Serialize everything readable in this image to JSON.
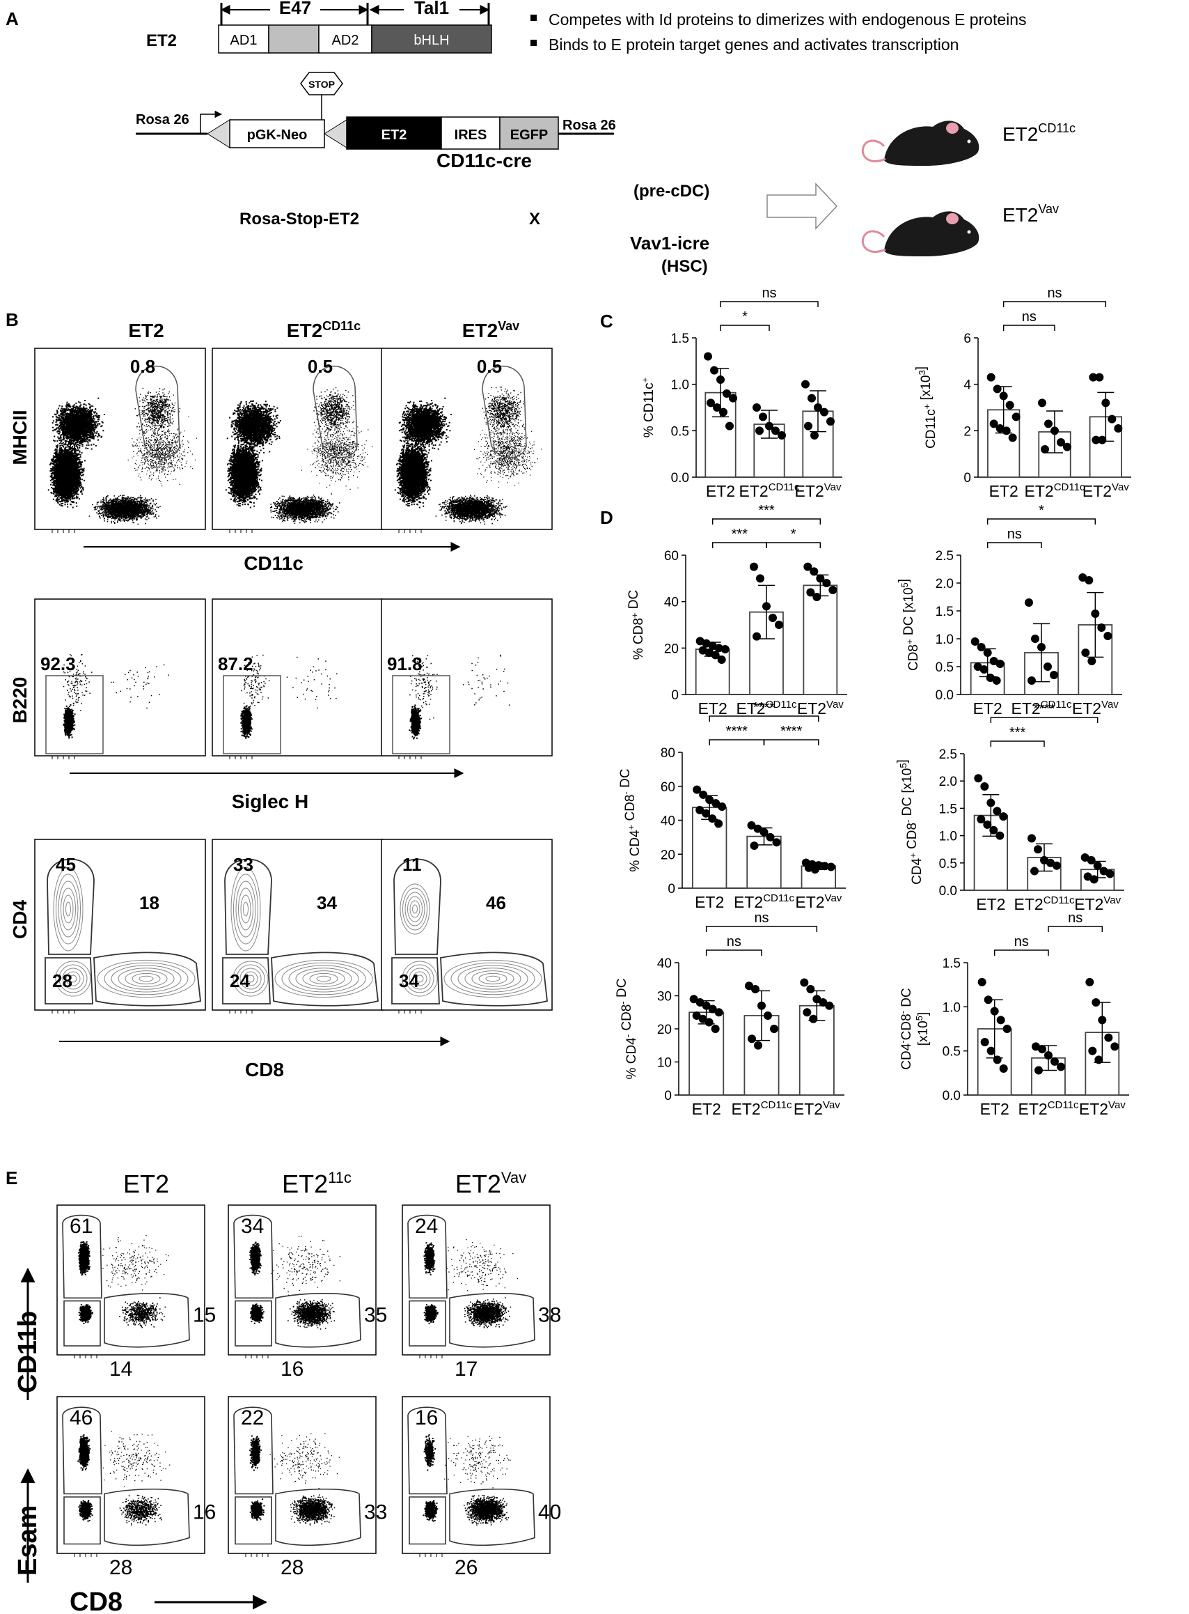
{
  "panelA": {
    "letter": "A",
    "construct_name": "ET2",
    "bracket_e47": "E47",
    "bracket_tal1": "Tal1",
    "domains": [
      "AD1",
      "AD2",
      "bHLH"
    ],
    "bullets": [
      "Competes with Id proteins to dimerizes with endogenous E proteins",
      "Binds to E protein target genes and activates transcription"
    ],
    "stop": "STOP",
    "rosa_left": "Rosa 26",
    "rosa_right": "Rosa 26",
    "pgk": "pGK-Neo",
    "et2_box": "ET2",
    "ires": "IRES",
    "egfp": "EGFP",
    "cd11c_cre": "CD11c-cre",
    "pre_cdc": "(pre-cDC)",
    "rosa_stop_et2": "Rosa-Stop-ET2",
    "cross": "X",
    "vav1_icre": "Vav1-icre",
    "hsc": "(HSC)",
    "mouse1_base": "ET2",
    "mouse1_sup": "CD11c",
    "mouse2_base": "ET2",
    "mouse2_sup": "Vav",
    "colors": {
      "bhlh": "#595959",
      "egfp": "#bfbfbf",
      "ad_gap": "#bfbfbf",
      "mouse": "#1a1a1a",
      "ear": "#e8a0b0",
      "tail": "#e08a9a"
    }
  },
  "panelB": {
    "letter": "B",
    "col_titles": [
      {
        "base": "ET2",
        "sup": ""
      },
      {
        "base": "ET2",
        "sup": "CD11c"
      },
      {
        "base": "ET2",
        "sup": "Vav"
      }
    ],
    "row1": {
      "ylabel": "MHCII",
      "xlabel": "CD11c",
      "gate_values": [
        "0.8",
        "0.5",
        "0.5"
      ]
    },
    "row2": {
      "ylabel": "B220",
      "xlabel": "Siglec H",
      "gate_values": [
        "92.3",
        "87.2",
        "91.8"
      ]
    },
    "row3": {
      "ylabel": "CD4",
      "xlabel": "CD8",
      "gates": [
        {
          "cd4": "45",
          "cd8": "18",
          "dn": "28"
        },
        {
          "cd4": "33",
          "cd8": "34",
          "dn": "24"
        },
        {
          "cd4": "11",
          "cd8": "46",
          "dn": "34"
        }
      ]
    }
  },
  "panelC": {
    "letter": "C"
  },
  "panelD": {
    "letter": "D"
  },
  "panelE": {
    "letter": "E",
    "col_titles": [
      {
        "base": "ET2",
        "sup": ""
      },
      {
        "base": "ET2",
        "sup": "11c"
      },
      {
        "base": "ET2",
        "sup": "Vav"
      }
    ],
    "row1": {
      "ylabel": "CD11b",
      "gates": [
        {
          "top": "61",
          "right": "15",
          "bottom": "14"
        },
        {
          "top": "34",
          "right": "35",
          "bottom": "16"
        },
        {
          "top": "24",
          "right": "38",
          "bottom": "17"
        }
      ]
    },
    "row2": {
      "ylabel": "Esam",
      "gates": [
        {
          "top": "46",
          "right": "16",
          "bottom": "28"
        },
        {
          "top": "22",
          "right": "33",
          "bottom": "28"
        },
        {
          "top": "16",
          "right": "40",
          "bottom": "26"
        }
      ]
    },
    "xlabel": "CD8"
  },
  "chart_data": [
    {
      "type": "bar",
      "panel": "C",
      "ylabel": "% CD11c+",
      "ylim": [
        0,
        1.5
      ],
      "yticks": [
        0.0,
        0.5,
        1.0,
        1.5
      ],
      "categories": [
        "ET2",
        "ET2 CD11c",
        "ET2 Vav"
      ],
      "values": [
        0.91,
        0.57,
        0.71
      ],
      "errors": [
        0.26,
        0.15,
        0.22
      ],
      "points": [
        [
          1.3,
          1.15,
          1.05,
          0.9,
          0.85,
          0.8,
          0.75,
          0.7,
          0.55
        ],
        [
          0.75,
          0.65,
          0.55,
          0.5,
          0.45,
          0.5
        ],
        [
          1.0,
          0.85,
          0.75,
          0.7,
          0.6,
          0.55,
          0.45
        ]
      ],
      "brackets": [
        {
          "from": 0,
          "to": 2,
          "label": "ns"
        },
        {
          "from": 0,
          "to": 1,
          "label": "*"
        }
      ]
    },
    {
      "type": "bar",
      "panel": "C",
      "ylabel": "CD11c+ [x10^3]",
      "ylim": [
        0,
        6
      ],
      "yticks": [
        0,
        2,
        4,
        6
      ],
      "categories": [
        "ET2",
        "ET2 CD11c",
        "ET2 Vav"
      ],
      "values": [
        2.9,
        1.95,
        2.6
      ],
      "errors": [
        1.0,
        0.9,
        1.05
      ],
      "points": [
        [
          4.3,
          3.8,
          3.5,
          3.1,
          2.6,
          2.3,
          2.1,
          2.0,
          1.7
        ],
        [
          3.2,
          2.3,
          2.0,
          1.5,
          1.3,
          1.2
        ],
        [
          4.3,
          4.3,
          3.2,
          2.5,
          2.1,
          1.6,
          1.6
        ]
      ],
      "brackets": [
        {
          "from": 0,
          "to": 2,
          "label": "ns"
        },
        {
          "from": 0,
          "to": 1,
          "label": "ns"
        }
      ]
    },
    {
      "type": "bar",
      "panel": "D",
      "ylabel": "% CD8+ DC",
      "ylim": [
        0,
        60
      ],
      "yticks": [
        0,
        20,
        40,
        60
      ],
      "categories": [
        "ET2",
        "ET2 CD11c",
        "ET2 Vav"
      ],
      "values": [
        19.5,
        35.5,
        47
      ],
      "errors": [
        3,
        11.5,
        4.5
      ],
      "points": [
        [
          23,
          22,
          21,
          20,
          19.5,
          19,
          18,
          17,
          15
        ],
        [
          55,
          50,
          38,
          33,
          30,
          25
        ],
        [
          55,
          53,
          50,
          48,
          45,
          44,
          42
        ]
      ],
      "brackets": [
        {
          "from": 0,
          "to": 2,
          "label": "***"
        },
        {
          "from": 0,
          "to": 1,
          "label": "***"
        },
        {
          "from": 1,
          "to": 2,
          "label": "*"
        }
      ]
    },
    {
      "type": "bar",
      "panel": "D",
      "ylabel": "CD8+ DC [x10^5]",
      "ylim": [
        0,
        2.5
      ],
      "yticks": [
        0.0,
        0.5,
        1.0,
        1.5,
        2.0,
        2.5
      ],
      "categories": [
        "ET2",
        "ET2 CD11c",
        "ET2 Vav"
      ],
      "values": [
        0.57,
        0.75,
        1.25
      ],
      "errors": [
        0.25,
        0.52,
        0.58
      ],
      "points": [
        [
          0.95,
          0.85,
          0.75,
          0.6,
          0.55,
          0.5,
          0.45,
          0.3,
          0.25
        ],
        [
          1.65,
          1.0,
          0.85,
          0.5,
          0.35,
          0.25
        ],
        [
          2.1,
          2.05,
          1.45,
          1.2,
          1.05,
          0.75,
          0.6
        ]
      ],
      "brackets": [
        {
          "from": 0,
          "to": 2,
          "label": "*"
        },
        {
          "from": 0,
          "to": 1,
          "label": "ns"
        }
      ]
    },
    {
      "type": "bar",
      "panel": "D",
      "ylabel": "% CD4+ CD8- DC",
      "ylim": [
        0,
        80
      ],
      "yticks": [
        0,
        20,
        40,
        60,
        80
      ],
      "categories": [
        "ET2",
        "ET2 CD11c",
        "ET2 Vav"
      ],
      "values": [
        47.5,
        30.5,
        13
      ],
      "errors": [
        7,
        5,
        2
      ],
      "points": [
        [
          58,
          55,
          52,
          50,
          48,
          46,
          44,
          41,
          38
        ],
        [
          37,
          35,
          33,
          30,
          27,
          25
        ],
        [
          15,
          14,
          13.5,
          13,
          12.5,
          12,
          11
        ]
      ],
      "brackets": [
        {
          "from": 0,
          "to": 2,
          "label": "****"
        },
        {
          "from": 0,
          "to": 1,
          "label": "****"
        },
        {
          "from": 1,
          "to": 2,
          "label": "****"
        }
      ]
    },
    {
      "type": "bar",
      "panel": "D",
      "ylabel": "CD4+ CD8- DC [x10^5]",
      "ylim": [
        0,
        2.5
      ],
      "yticks": [
        0.0,
        0.5,
        1.0,
        1.5,
        2.0,
        2.5
      ],
      "categories": [
        "ET2",
        "ET2 CD11c",
        "ET2 Vav"
      ],
      "values": [
        1.37,
        0.6,
        0.38
      ],
      "errors": [
        0.38,
        0.25,
        0.15
      ],
      "points": [
        [
          2.05,
          1.9,
          1.6,
          1.45,
          1.35,
          1.3,
          1.2,
          1.1,
          1.0
        ],
        [
          0.95,
          0.75,
          0.55,
          0.5,
          0.45,
          0.35
        ],
        [
          0.6,
          0.55,
          0.45,
          0.35,
          0.3,
          0.25,
          0.2
        ]
      ],
      "brackets": [
        {
          "from": 0,
          "to": 2,
          "label": "****"
        },
        {
          "from": 0,
          "to": 1,
          "label": "***"
        }
      ]
    },
    {
      "type": "bar",
      "panel": "D",
      "ylabel": "% CD4- CD8- DC",
      "ylim": [
        0,
        40
      ],
      "yticks": [
        0,
        10,
        20,
        30,
        40
      ],
      "categories": [
        "ET2",
        "ET2 CD11c",
        "ET2 Vav"
      ],
      "values": [
        25,
        24,
        27
      ],
      "errors": [
        3.5,
        7.5,
        4.5
      ],
      "points": [
        [
          29,
          28,
          27,
          26,
          25,
          24,
          23,
          22,
          20
        ],
        [
          33,
          32,
          27,
          24,
          20,
          17,
          15
        ],
        [
          34,
          32,
          29,
          28,
          27,
          25,
          23
        ]
      ],
      "brackets": [
        {
          "from": 0,
          "to": 2,
          "label": "ns"
        },
        {
          "from": 0,
          "to": 1,
          "label": "ns"
        }
      ]
    },
    {
      "type": "bar",
      "panel": "D",
      "ylabel": "CD4-CD8- DC [x10^5]",
      "ylim": [
        0,
        1.5
      ],
      "yticks": [
        0.0,
        0.5,
        1.0,
        1.5
      ],
      "categories": [
        "ET2",
        "ET2 CD11c",
        "ET2 Vav"
      ],
      "values": [
        0.75,
        0.42,
        0.71
      ],
      "errors": [
        0.33,
        0.14,
        0.34
      ],
      "points": [
        [
          1.28,
          1.08,
          0.95,
          0.85,
          0.75,
          0.6,
          0.5,
          0.4,
          0.3
        ],
        [
          0.55,
          0.52,
          0.45,
          0.38,
          0.32,
          0.28
        ],
        [
          1.28,
          1.05,
          0.85,
          0.65,
          0.55,
          0.5,
          0.4
        ]
      ],
      "brackets": [
        {
          "from": 1,
          "to": 2,
          "label": "ns"
        },
        {
          "from": 0,
          "to": 1,
          "label": "ns"
        }
      ]
    }
  ]
}
